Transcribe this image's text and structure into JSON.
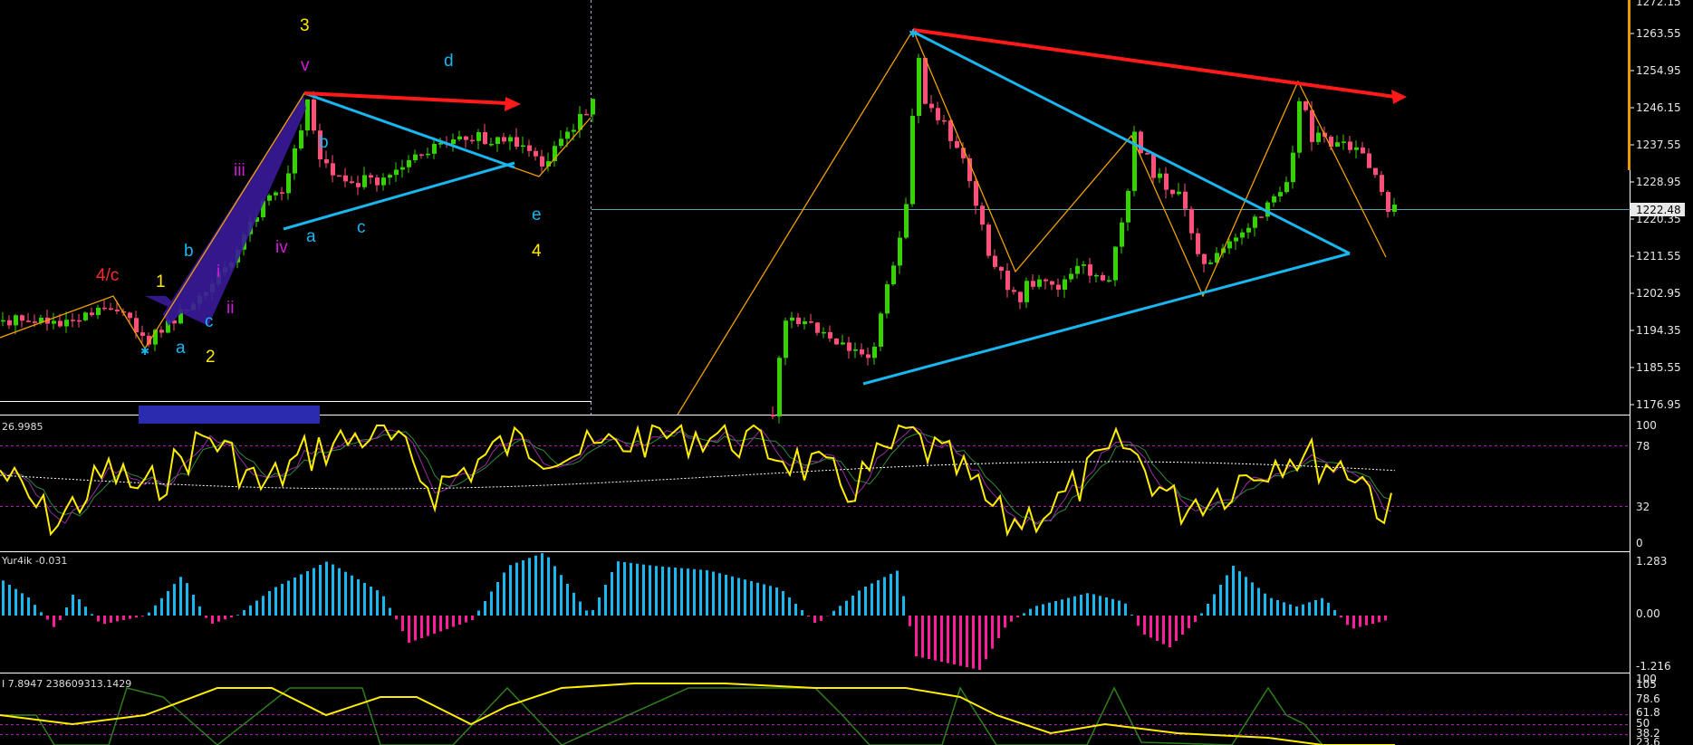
{
  "colors": {
    "background": "#000000",
    "bull_candle": "#35d400",
    "bear_candle": "#ff4f79",
    "trend_red": "#ff1a1a",
    "trend_blue": "#19b6f0",
    "zigzag": "#f0a000",
    "wave_yellow": "#ffea00",
    "wave_cyan": "#19b6f0",
    "wave_magenta": "#d21bd8",
    "wave_red": "#ff2a2a",
    "osc_yellow": "#ffee00",
    "hist_up": "#19b6f0",
    "hist_down": "#ff1e9a",
    "stoch_green": "#2f7e1d",
    "current_price_line": "#5aa0b0"
  },
  "price_axis": {
    "labels": [
      "1263.55",
      "1254.95",
      "1246.15",
      "1237.55",
      "1228.95",
      "1220.35",
      "1211.55",
      "1202.95",
      "1194.35",
      "1185.55",
      "1176.95"
    ],
    "top_partial": "1272.15",
    "current_price": "1222.48"
  },
  "left_wave_labels": {
    "w3": "3",
    "v": "v",
    "d": "d",
    "b_upper": "b",
    "iii": "iii",
    "iv": "iv",
    "a_upper": "a",
    "c_upper": "c",
    "e": "e",
    "w4": "4",
    "four_c": "4/c",
    "w1": "1",
    "b_lower": "b",
    "i": "i",
    "ii": "ii",
    "c_lower": "c",
    "a_lower": "a",
    "w2": "2"
  },
  "oscillator1": {
    "header": "26.9985",
    "levels": [
      "100",
      "78",
      "32",
      "0"
    ]
  },
  "oscillator2": {
    "header": "Yur4ik -0.031",
    "levels": [
      "1.283",
      "0.00",
      "-1.216"
    ]
  },
  "oscillator3": {
    "header": "I 7.8947 238609313.1429",
    "levels": [
      "100",
      "105",
      "78.6",
      "61.8",
      "50",
      "38.2",
      "23.6"
    ]
  }
}
